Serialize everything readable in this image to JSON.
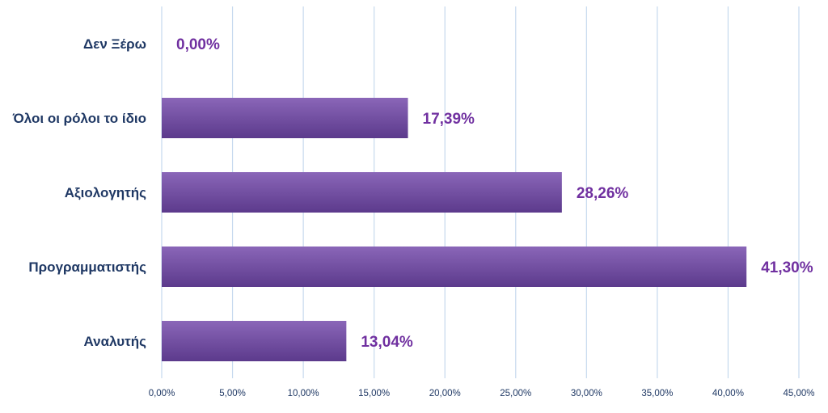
{
  "chart_data": {
    "type": "bar",
    "orientation": "horizontal",
    "categories": [
      "Δεν Ξέρω",
      "Όλοι οι ρόλοι το ίδιο",
      "Αξιολογητής",
      "Προγραμματιστής",
      "Αναλυτής"
    ],
    "values": [
      0.0,
      17.39,
      28.26,
      41.3,
      13.04
    ],
    "value_labels": [
      "0,00%",
      "17,39%",
      "28,26%",
      "41,30%",
      "13,04%"
    ],
    "xlim": [
      0,
      45
    ],
    "x_ticks": [
      0,
      5,
      10,
      15,
      20,
      25,
      30,
      35,
      40,
      45
    ],
    "x_tick_labels": [
      "0,00%",
      "5,00%",
      "10,00%",
      "15,00%",
      "20,00%",
      "25,00%",
      "30,00%",
      "35,00%",
      "40,00%",
      "45,00%"
    ],
    "grid": "vertical",
    "legend": "none",
    "colors": {
      "bar_top": "#8a66b8",
      "bar_bottom": "#5c3a8c",
      "value_label": "#7030a0",
      "category_label": "#1f3864",
      "grid": "#c6d9ee"
    }
  }
}
